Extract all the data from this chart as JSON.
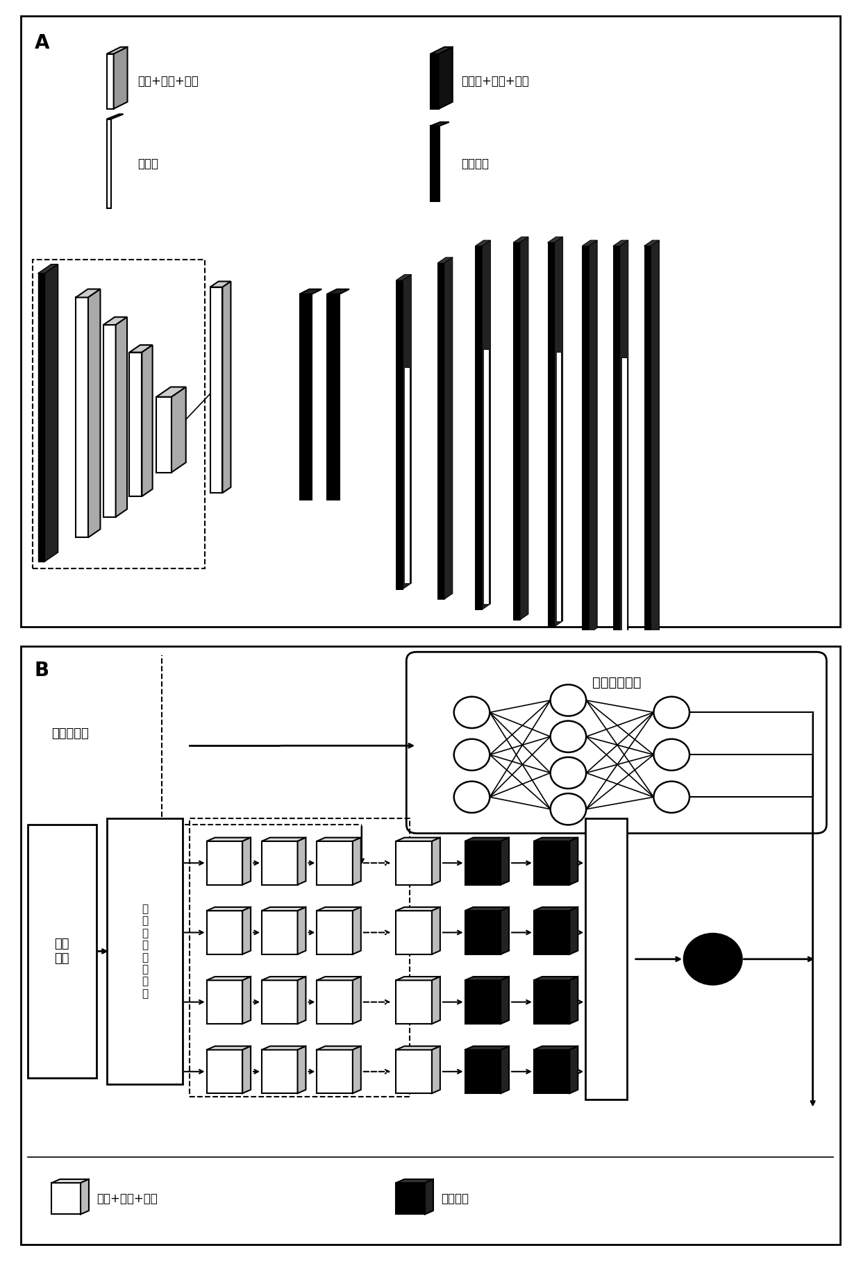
{
  "panel_A_label": "A",
  "panel_B_label": "B",
  "legend_A_white_label": "卷积+激励+池化",
  "legend_A_black_label": "上采样+卷积+激励",
  "legend_A_flat_label": "平铺层",
  "legend_A_fc_label": "全连接层",
  "fuzzy_gate_label": "模糊门控单元",
  "init_param_label": "初始化参数",
  "eeg_label": "脑电\n信号",
  "multiscale_label": "多\n尺\n度\n脑\n功\n能\n网\n络",
  "legend_B_white_label": "卷积+激励+池化",
  "legend_B_black_label": "全连接层"
}
